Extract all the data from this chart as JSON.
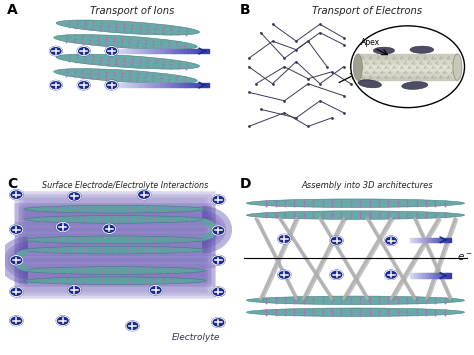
{
  "bg_color": "#ffffff",
  "panel_labels": [
    "A",
    "B",
    "C",
    "D"
  ],
  "panel_titles": [
    "Transport of Ions",
    "Transport of Electrons",
    "Surface Electrode/Electrolyte Interactions",
    "Assembly into 3D architectures"
  ],
  "sheet_color": "#5ba3a0",
  "sheet_edge": "#3a7a78",
  "dot_color": "#c060c0",
  "ion_bg": "#1a2a8c",
  "arrow_dark": "#1a2a8c",
  "arrow_light": "#b0b8e8",
  "panel_C_bg": "#cce0f0",
  "glow_purple": "#5544aa",
  "rod_color": "#b0b0b0",
  "rod_shadow": "#808080",
  "wire_color": "#404040",
  "tube_body": "#d8d8c8",
  "tube_edge": "#888870",
  "particle_color": "#3a3a52",
  "figsize": [
    4.74,
    3.55
  ],
  "dpi": 100
}
